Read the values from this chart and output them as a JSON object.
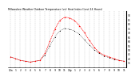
{
  "title": "Milwaukee Weather Outdoor Temperature (vs) Heat Index (Last 24 Hours)",
  "bg_color": "#ffffff",
  "plot_bg_color": "#ffffff",
  "grid_color": "#aaaaaa",
  "temp_color": "#000000",
  "heat_color": "#ff0000",
  "hours": [
    0,
    1,
    2,
    3,
    4,
    5,
    6,
    7,
    8,
    9,
    10,
    11,
    12,
    13,
    14,
    15,
    16,
    17,
    18,
    19,
    20,
    21,
    22,
    23
  ],
  "temp": [
    42,
    40,
    38,
    37,
    36,
    37,
    38,
    44,
    55,
    65,
    72,
    75,
    74,
    72,
    68,
    62,
    56,
    50,
    46,
    43,
    41,
    39,
    38,
    37
  ],
  "heat": [
    42,
    40,
    38,
    37,
    36,
    37,
    38,
    46,
    60,
    74,
    84,
    88,
    87,
    84,
    78,
    70,
    61,
    53,
    47,
    44,
    42,
    40,
    38,
    37
  ],
  "ylim": [
    30,
    95
  ],
  "ytick_vals": [
    35,
    40,
    45,
    50,
    55,
    60,
    65,
    70,
    75,
    80,
    85,
    90
  ],
  "ytick_labels": [
    "35",
    "40",
    "45",
    "50",
    "55",
    "60",
    "65",
    "70",
    "75",
    "80",
    "85",
    "90"
  ],
  "xlim": [
    -0.5,
    23.5
  ],
  "xtick_vals": [
    0,
    1,
    2,
    3,
    4,
    5,
    6,
    7,
    8,
    9,
    10,
    11,
    12,
    13,
    14,
    15,
    16,
    17,
    18,
    19,
    20,
    21,
    22,
    23
  ],
  "xtick_labels": [
    "12a",
    "1",
    "2",
    "3",
    "4",
    "5",
    "6",
    "7",
    "8",
    "9",
    "10",
    "11",
    "12p",
    "1",
    "2",
    "3",
    "4",
    "5",
    "6",
    "7",
    "8",
    "9",
    "10",
    "11"
  ]
}
